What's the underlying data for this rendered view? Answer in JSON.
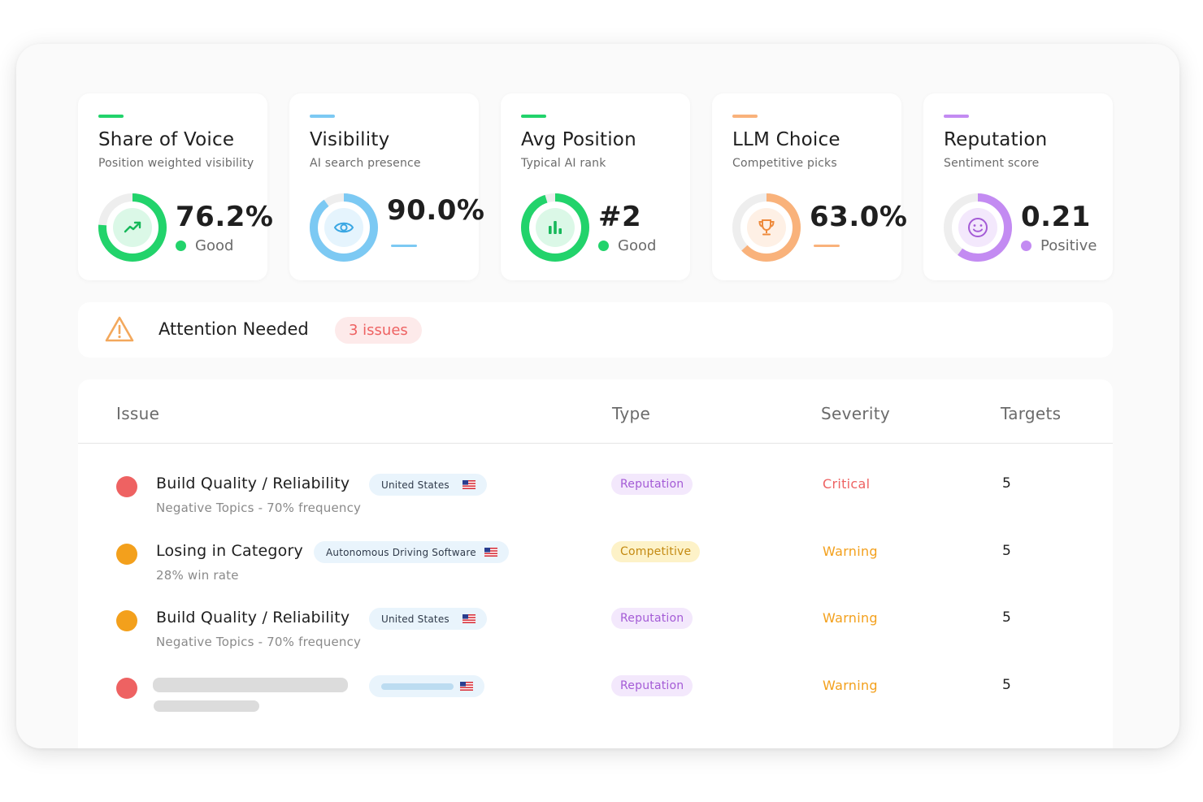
{
  "metrics": [
    {
      "title": "Share of Voice",
      "subtitle": "Position weighted visibility",
      "value": "76.2%",
      "status": "Good",
      "fill": 0.762,
      "accent": "#22d36b",
      "icon": "trending-up-icon"
    },
    {
      "title": "Visibility",
      "subtitle": "AI search presence",
      "value": "90.0%",
      "status": "",
      "fill": 0.9,
      "accent": "#7cc9f3",
      "icon": "eye-icon"
    },
    {
      "title": "Avg Position",
      "subtitle": "Typical AI rank",
      "value": "#2",
      "status": "Good",
      "fill": 0.95,
      "accent": "#22d36b",
      "icon": "bar-chart-icon"
    },
    {
      "title": "LLM Choice",
      "subtitle": "Competitive picks",
      "value": "63.0%",
      "status": "",
      "fill": 0.63,
      "accent": "#f9b27b",
      "icon": "trophy-icon"
    },
    {
      "title": "Reputation",
      "subtitle": "Sentiment score",
      "value": "0.21",
      "status": "Positive",
      "fill": 0.6,
      "accent": "#c38bf2",
      "icon": "smile-icon"
    }
  ],
  "attention": {
    "label": "Attention Needed",
    "badge": "3 issues"
  },
  "table": {
    "headers": {
      "issue": "Issue",
      "type": "Type",
      "severity": "Severity",
      "targets": "Targets"
    },
    "rows": [
      {
        "title": "Build Quality / Reliability",
        "subtitle": "Negative Topics - 70% frequency",
        "region": "United States",
        "type": "Reputation",
        "severity": "Critical",
        "targets": "5"
      },
      {
        "title": "Losing in Category",
        "subtitle": "28% win rate",
        "region": "Autonomous Driving Software",
        "type": "Competitive",
        "severity": "Warning",
        "targets": "5"
      },
      {
        "title": "Build Quality / Reliability",
        "subtitle": "Negative Topics - 70% frequency",
        "region": "United States",
        "type": "Reputation",
        "severity": "Warning",
        "targets": "5"
      },
      {
        "title": "",
        "subtitle": "",
        "region": "",
        "type": "Reputation",
        "severity": "Warning",
        "targets": "5"
      }
    ]
  },
  "colors": {
    "critical": "#ee6262",
    "warning": "#f3a01c",
    "reputation_bg": "#f3e8fc",
    "reputation_fg": "#a45bd6",
    "competitive_bg": "#fdf2c8",
    "competitive_fg": "#c48a12",
    "good": "#22d36b",
    "positive": "#c38bf2"
  }
}
